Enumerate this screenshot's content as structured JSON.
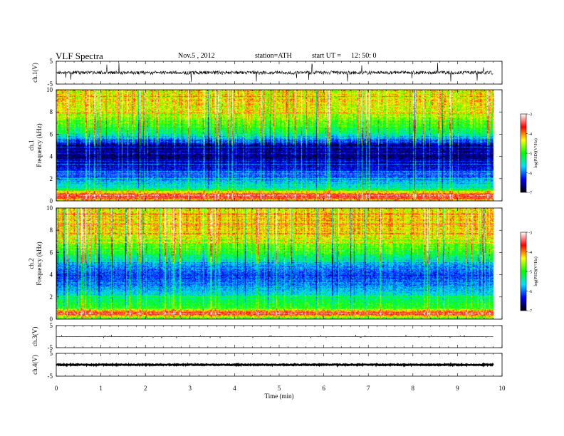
{
  "header": {
    "title": "VLF  Spectra",
    "date": "Nov.5  , 2012",
    "station": "station=ATH",
    "start_label": "start  UT  =",
    "start_time": "12: 50: 0"
  },
  "colors": {
    "trace": "#000000",
    "colormap": [
      "#000000",
      "#0000ff",
      "#00e0ff",
      "#00ff00",
      "#ffff00",
      "#ff0000",
      "#ffffff"
    ]
  },
  "chart_data": [
    {
      "type": "line",
      "panel": "ch1-waveform",
      "ylabel": "ch.1(V)",
      "ylim": [
        -5,
        5
      ],
      "yticks": [
        "5",
        "-5"
      ],
      "xlim": [
        0,
        10
      ],
      "series": [
        {
          "x_range": [
            0,
            9.8
          ],
          "mean": 0,
          "amplitude": 1.3,
          "spikes": 4.5
        }
      ]
    },
    {
      "type": "heatmap",
      "panel": "ch1-spectrogram",
      "ylabel": "Frequency  (kHz)",
      "channel_label": "ch.1",
      "ylim": [
        0,
        10
      ],
      "yticks": [
        "0",
        "2",
        "4",
        "6",
        "8",
        "10"
      ],
      "xlim": [
        0,
        10
      ],
      "colorbar": {
        "label": "log(PSD)(V²/Hz)",
        "range": [
          -7,
          -3
        ],
        "ticks": [
          "-3",
          "-4",
          "-5",
          "-6",
          "-7"
        ]
      },
      "profile_kHz": [
        0,
        0.5,
        1,
        2,
        3,
        4,
        5,
        6,
        7,
        8,
        9,
        10
      ],
      "profile_logPSD": [
        -4.3,
        -3.4,
        -5.3,
        -6.0,
        -6.4,
        -6.7,
        -6.6,
        -5.4,
        -4.8,
        -4.5,
        -4.3,
        -4.4
      ]
    },
    {
      "type": "heatmap",
      "panel": "ch2-spectrogram",
      "ylabel": "Frequency  (kHz)",
      "channel_label": "ch.2",
      "ylim": [
        0,
        10
      ],
      "yticks": [
        "0",
        "2",
        "4",
        "6",
        "8",
        "10"
      ],
      "xlim": [
        0,
        10
      ],
      "colorbar": {
        "label": "log(PSD)(V²/Hz)",
        "range": [
          -7,
          -3
        ],
        "ticks": [
          "-3",
          "-4",
          "-5",
          "-6",
          "-7"
        ]
      },
      "profile_kHz": [
        0,
        0.5,
        1,
        2,
        3,
        4,
        5,
        6,
        7,
        8,
        9,
        10
      ],
      "profile_logPSD": [
        -5.0,
        -3.5,
        -5.0,
        -5.4,
        -5.9,
        -6.2,
        -5.8,
        -5.0,
        -4.6,
        -4.3,
        -4.2,
        -4.3
      ]
    },
    {
      "type": "line",
      "panel": "ch3-waveform",
      "ylabel": "ch.3(V)",
      "ylim": [
        -5,
        5
      ],
      "yticks": [
        "5",
        "-5"
      ],
      "xlim": [
        0,
        10
      ],
      "series": [
        {
          "x_range": [
            0,
            9.8
          ],
          "mean": 0,
          "amplitude": 0.15,
          "spikes": 0.6
        }
      ]
    },
    {
      "type": "line",
      "panel": "ch4-waveform",
      "ylabel": "ch.4(V)",
      "ylim": [
        -5,
        5
      ],
      "yticks": [
        "5",
        "-5"
      ],
      "xlim": [
        0,
        10
      ],
      "xlabel": "Time  (min)",
      "xticks": [
        "0",
        "1",
        "2",
        "3",
        "4",
        "5",
        "6",
        "7",
        "8",
        "9",
        "10"
      ],
      "series": [
        {
          "x_range": [
            0,
            9.8
          ],
          "mean": 0,
          "amplitude": 0.35,
          "spikes": 0
        }
      ]
    }
  ]
}
